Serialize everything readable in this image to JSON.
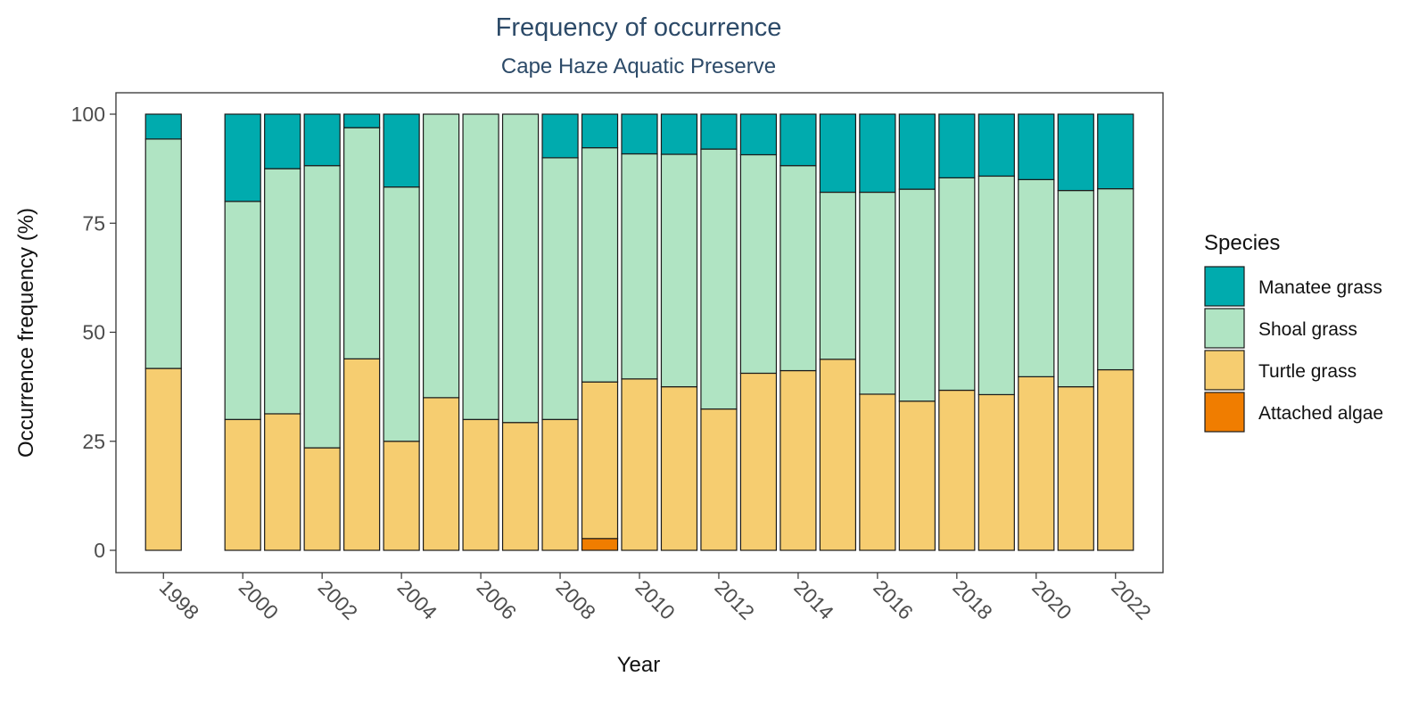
{
  "chart_data": {
    "type": "bar",
    "stacked": true,
    "title": "Frequency of occurrence",
    "subtitle": "Cape Haze Aquatic Preserve",
    "xlabel": "Year",
    "ylabel": "Occurrence frequency (%)",
    "ylim": [
      0,
      100
    ],
    "yticks": [
      0,
      25,
      50,
      75,
      100
    ],
    "xticks": [
      1998,
      2000,
      2002,
      2004,
      2006,
      2008,
      2010,
      2012,
      2014,
      2016,
      2018,
      2020,
      2022
    ],
    "xlim": [
      1997,
      2023
    ],
    "grid": false,
    "legend_position": "right",
    "legend_title": "Species",
    "categories": [
      1998,
      2000,
      2001,
      2002,
      2003,
      2004,
      2005,
      2006,
      2007,
      2008,
      2009,
      2010,
      2011,
      2012,
      2013,
      2014,
      2015,
      2016,
      2017,
      2018,
      2019,
      2020,
      2021,
      2022
    ],
    "series": [
      {
        "name": "Attached algae",
        "color": "#f07d00",
        "values": [
          0,
          0,
          0,
          0,
          0,
          0,
          0,
          0,
          0,
          0,
          2.7,
          0,
          0,
          0,
          0,
          0,
          0,
          0,
          0,
          0,
          0,
          0,
          0,
          0
        ]
      },
      {
        "name": "Turtle grass",
        "color": "#f6cd70",
        "values": [
          41.7,
          30.0,
          31.3,
          23.5,
          43.9,
          25.0,
          35.0,
          30.0,
          29.3,
          30.0,
          35.9,
          39.3,
          37.5,
          32.4,
          40.6,
          41.2,
          43.8,
          35.8,
          34.2,
          36.7,
          35.7,
          39.8,
          37.5,
          41.4
        ]
      },
      {
        "name": "Shoal grass",
        "color": "#b0e4c3",
        "values": [
          52.6,
          50.0,
          56.2,
          64.7,
          53.0,
          58.3,
          65.0,
          70.0,
          70.7,
          60.0,
          53.7,
          51.6,
          53.3,
          59.6,
          50.1,
          47.0,
          38.3,
          46.3,
          48.6,
          48.7,
          50.1,
          45.2,
          45.0,
          41.5
        ]
      },
      {
        "name": "Manatee grass",
        "color": "#00abae",
        "values": [
          5.7,
          20.0,
          12.5,
          11.8,
          3.1,
          16.7,
          0,
          0,
          0,
          10.0,
          7.7,
          9.1,
          9.2,
          8.0,
          9.3,
          11.8,
          17.9,
          17.9,
          17.2,
          14.6,
          14.2,
          15.0,
          17.5,
          17.1
        ]
      }
    ],
    "legend_order": [
      "Manatee grass",
      "Shoal grass",
      "Turtle grass",
      "Attached algae"
    ]
  }
}
